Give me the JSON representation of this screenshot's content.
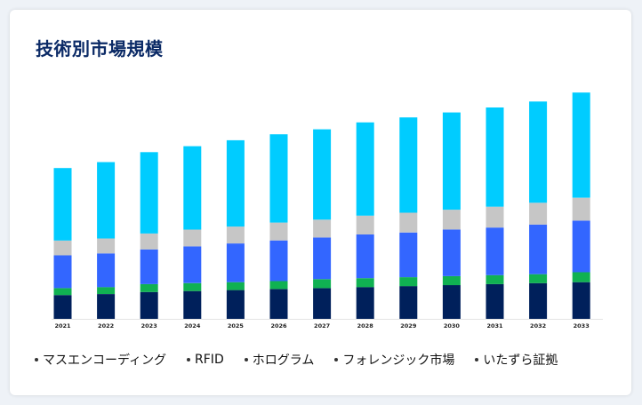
{
  "card": {
    "title": "技術別市場規模"
  },
  "chart_data": {
    "type": "bar",
    "stacked": true,
    "title": "技術別市場規模",
    "categories": [
      "2021",
      "2022",
      "2023",
      "2024",
      "2025",
      "2026",
      "2027",
      "2028",
      "2029",
      "2030",
      "2031",
      "2032",
      "2033"
    ],
    "series": [
      {
        "name": "マスエンコーディング",
        "color": "#00205b",
        "values": [
          24,
          25,
          27,
          28,
          29,
          30,
          31,
          32,
          33,
          34,
          35,
          36,
          37
        ]
      },
      {
        "name": "RFID",
        "color": "#10b152",
        "values": [
          7,
          7,
          8,
          8,
          8,
          8,
          9,
          9,
          9,
          9,
          9,
          9,
          10
        ]
      },
      {
        "name": "ホログラム",
        "color": "#3366ff",
        "values": [
          33,
          34,
          35,
          37,
          39,
          41,
          42,
          44,
          45,
          47,
          48,
          50,
          52
        ]
      },
      {
        "name": "フォレンジック市場",
        "color": "#c6c6c6",
        "values": [
          15,
          15,
          16,
          17,
          17,
          18,
          18,
          19,
          20,
          20,
          21,
          22,
          23
        ]
      },
      {
        "name": "いたずら証拠",
        "color": "#00ccff",
        "values": [
          73,
          77,
          82,
          84,
          87,
          89,
          91,
          94,
          96,
          98,
          100,
          102,
          106
        ]
      }
    ],
    "ylim": [
      0,
      230
    ],
    "grid": false,
    "legend_position": "bottom"
  }
}
